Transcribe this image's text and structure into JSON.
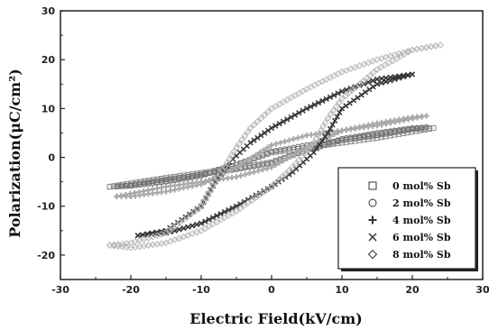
{
  "chart_data": {
    "type": "scatter",
    "xlabel": "Electric Field(kV/cm)",
    "ylabel": "Polarization(μC/cm²)",
    "xlim": [
      -30,
      30
    ],
    "ylim": [
      -25,
      30
    ],
    "xticks": [
      -30,
      -20,
      -10,
      0,
      10,
      20,
      30
    ],
    "yticks": [
      -20,
      -10,
      0,
      10,
      20,
      30
    ],
    "legend_position": "bottom-right",
    "series": [
      {
        "name": "0 mol% Sb",
        "marker": "square",
        "color": "#8a8a8a",
        "upper_branch": [
          [
            -23,
            -6
          ],
          [
            -15,
            -4.2
          ],
          [
            -10,
            -3.2
          ],
          [
            -5,
            -2.2
          ],
          [
            0,
            -1.0
          ],
          [
            5,
            1.5
          ],
          [
            10,
            3.5
          ],
          [
            15,
            4.8
          ],
          [
            20,
            5.8
          ],
          [
            23,
            6
          ]
        ],
        "lower_branch": [
          [
            23,
            6
          ],
          [
            15,
            4.0
          ],
          [
            10,
            3.0
          ],
          [
            5,
            2.0
          ],
          [
            0,
            1.0
          ],
          [
            -5,
            -1.5
          ],
          [
            -10,
            -3.5
          ],
          [
            -15,
            -4.8
          ],
          [
            -20,
            -5.8
          ],
          [
            -23,
            -6
          ]
        ]
      },
      {
        "name": "2 mol% Sb",
        "marker": "circle",
        "color": "#6e6e6e",
        "upper_branch": [
          [
            -22,
            -6
          ],
          [
            -15,
            -4.5
          ],
          [
            -10,
            -3.5
          ],
          [
            -5,
            -2.5
          ],
          [
            0,
            -1.2
          ],
          [
            5,
            1.5
          ],
          [
            10,
            3.8
          ],
          [
            15,
            5.0
          ],
          [
            20,
            6.0
          ],
          [
            22,
            6.2
          ]
        ],
        "lower_branch": [
          [
            22,
            6.2
          ],
          [
            15,
            4.5
          ],
          [
            10,
            3.5
          ],
          [
            5,
            2.5
          ],
          [
            0,
            1.2
          ],
          [
            -5,
            -1.5
          ],
          [
            -10,
            -3.8
          ],
          [
            -15,
            -5.0
          ],
          [
            -20,
            -5.8
          ],
          [
            -22,
            -6
          ]
        ]
      },
      {
        "name": "4 mol% Sb",
        "marker": "plus",
        "color": "#a8a8a8",
        "upper_branch": [
          [
            -22,
            -8
          ],
          [
            -15,
            -6
          ],
          [
            -10,
            -5
          ],
          [
            -5,
            -4
          ],
          [
            0,
            -2
          ],
          [
            5,
            2
          ],
          [
            10,
            5.5
          ],
          [
            15,
            7.0
          ],
          [
            20,
            8.2
          ],
          [
            22,
            8.5
          ]
        ],
        "lower_branch": [
          [
            22,
            8.5
          ],
          [
            15,
            6.5
          ],
          [
            10,
            5.5
          ],
          [
            5,
            4.5
          ],
          [
            0,
            2.5
          ],
          [
            -5,
            -2
          ],
          [
            -10,
            -5.5
          ],
          [
            -15,
            -7
          ],
          [
            -20,
            -8
          ],
          [
            -22,
            -8
          ]
        ]
      },
      {
        "name": "6 mol% Sb",
        "marker": "x",
        "color": "#333333",
        "upper_branch": [
          [
            -19,
            -16
          ],
          [
            -15,
            -15.5
          ],
          [
            -10,
            -13.5
          ],
          [
            -5,
            -10
          ],
          [
            0,
            -6
          ],
          [
            3,
            -3
          ],
          [
            6,
            1
          ],
          [
            8,
            5
          ],
          [
            10,
            10
          ],
          [
            15,
            15
          ],
          [
            20,
            17
          ]
        ],
        "lower_branch": [
          [
            20,
            17
          ],
          [
            15,
            16
          ],
          [
            10,
            13.5
          ],
          [
            5,
            10
          ],
          [
            0,
            6
          ],
          [
            -3,
            3
          ],
          [
            -6,
            -1
          ],
          [
            -8,
            -5
          ],
          [
            -10,
            -10
          ],
          [
            -15,
            -15
          ],
          [
            -19,
            -16
          ]
        ]
      },
      {
        "name": "8 mol% Sb",
        "marker": "diamond",
        "color": "#b5b5b5",
        "upper_branch": [
          [
            -23,
            -18
          ],
          [
            -20,
            -18.5
          ],
          [
            -15,
            -17.5
          ],
          [
            -10,
            -15
          ],
          [
            -5,
            -11
          ],
          [
            0,
            -6
          ],
          [
            3,
            -2
          ],
          [
            6,
            3
          ],
          [
            8,
            8
          ],
          [
            10,
            12
          ],
          [
            15,
            18
          ],
          [
            20,
            22
          ],
          [
            24,
            23
          ]
        ],
        "lower_branch": [
          [
            24,
            23
          ],
          [
            20,
            22
          ],
          [
            15,
            20
          ],
          [
            10,
            17.5
          ],
          [
            5,
            14
          ],
          [
            0,
            10
          ],
          [
            -3,
            6
          ],
          [
            -5,
            2
          ],
          [
            -8,
            -5
          ],
          [
            -10,
            -10
          ],
          [
            -15,
            -15.5
          ],
          [
            -20,
            -17.5
          ],
          [
            -23,
            -18
          ]
        ]
      }
    ]
  }
}
